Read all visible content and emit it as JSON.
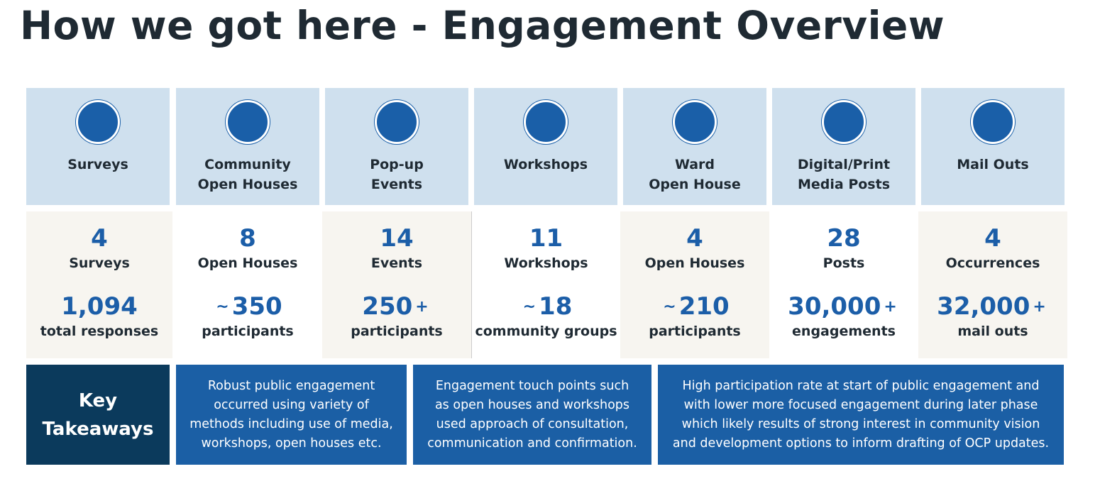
{
  "header": {
    "title": "How we got here - Engagement Overview"
  },
  "columns": [
    {
      "label": [
        "Surveys"
      ],
      "count": "4",
      "count_unit": "Surveys",
      "reach": "1,094",
      "reach_unit": "total responses"
    },
    {
      "label": [
        "Community",
        "Open Houses"
      ],
      "count": "8",
      "count_unit": "Open Houses",
      "reach_prefix": "~",
      "reach": "350",
      "reach_unit": "participants"
    },
    {
      "label": [
        "Pop-up",
        "Events"
      ],
      "count": "14",
      "count_unit": "Events",
      "reach": "250",
      "reach_suffix": "+",
      "reach_unit": "participants"
    },
    {
      "label": [
        "Workshops"
      ],
      "count": "11",
      "count_unit": "Workshops",
      "reach_prefix": "~",
      "reach": "18",
      "reach_unit": "community groups"
    },
    {
      "label": [
        "Ward",
        "Open House"
      ],
      "count": "4",
      "count_unit": "Open Houses",
      "reach_prefix": "~",
      "reach": "210",
      "reach_unit": "participants"
    },
    {
      "label": [
        "Digital/Print",
        "Media Posts"
      ],
      "count": "28",
      "count_unit": "Posts",
      "reach": "30,000",
      "reach_suffix": "+",
      "reach_unit": "engagements"
    },
    {
      "label": [
        "Mail Outs"
      ],
      "count": "4",
      "count_unit": "Occurrences",
      "reach": "32,000",
      "reach_suffix": "+",
      "reach_unit": "mail outs"
    }
  ],
  "takeaways": {
    "heading": [
      "Key",
      "Takeaways"
    ],
    "items": [
      [
        "Robust public engagement",
        "occurred using variety of",
        "methods including use of media,",
        "workshops, open houses etc."
      ],
      [
        "Engagement touch points such",
        "as open houses and workshops",
        "used approach of consultation,",
        "communication and confirmation."
      ],
      [
        "High participation rate at start of public engagement and",
        "with lower more focused engagement during later phase",
        "which likely results of strong interest in community vision",
        "and development options to inform drafting of OCP updates."
      ]
    ]
  }
}
